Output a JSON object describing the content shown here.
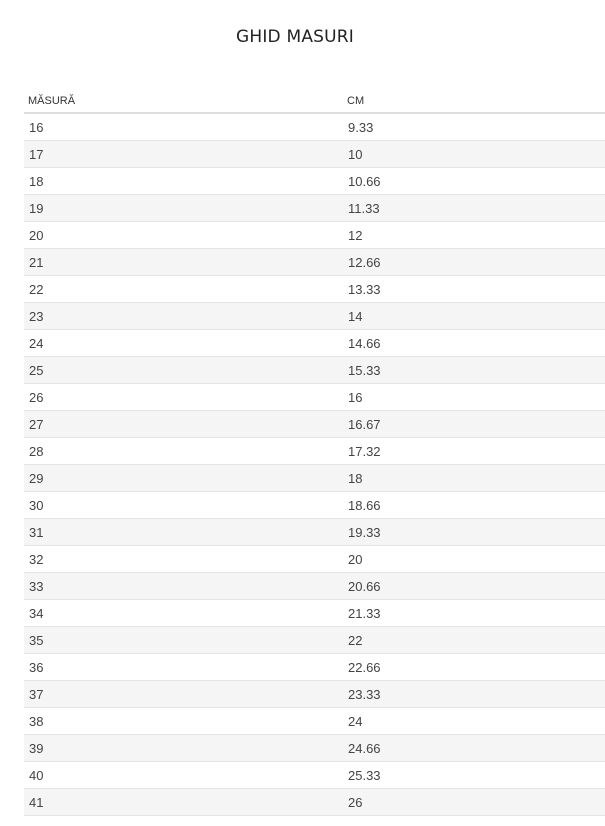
{
  "title": "GHID MASURI",
  "table": {
    "headers": [
      "MĂSURĂ",
      "CM"
    ],
    "rows": [
      [
        "16",
        "9.33"
      ],
      [
        "17",
        "10"
      ],
      [
        "18",
        "10.66"
      ],
      [
        "19",
        "11.33"
      ],
      [
        "20",
        "12"
      ],
      [
        "21",
        "12.66"
      ],
      [
        "22",
        "13.33"
      ],
      [
        "23",
        "14"
      ],
      [
        "24",
        "14.66"
      ],
      [
        "25",
        "15.33"
      ],
      [
        "26",
        "16"
      ],
      [
        "27",
        "16.67"
      ],
      [
        "28",
        "17.32"
      ],
      [
        "29",
        "18"
      ],
      [
        "30",
        "18.66"
      ],
      [
        "31",
        "19.33"
      ],
      [
        "32",
        "20"
      ],
      [
        "33",
        "20.66"
      ],
      [
        "34",
        "21.33"
      ],
      [
        "35",
        "22"
      ],
      [
        "36",
        "22.66"
      ],
      [
        "37",
        "23.33"
      ],
      [
        "38",
        "24"
      ],
      [
        "39",
        "24.66"
      ],
      [
        "40",
        "25.33"
      ],
      [
        "41",
        "26"
      ]
    ]
  }
}
